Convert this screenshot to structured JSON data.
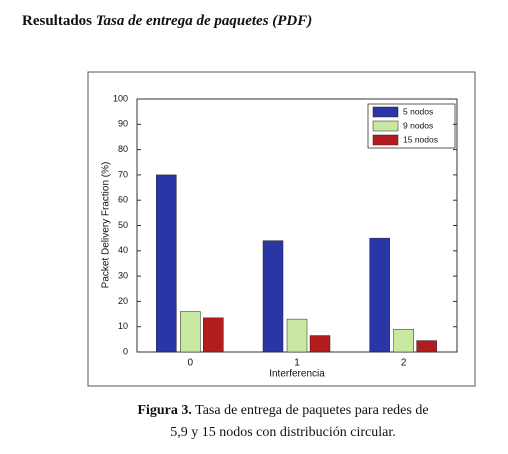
{
  "heading": {
    "label": "Resultados",
    "title": "Tasa de entrega de paquetes (PDF)"
  },
  "chart_data": {
    "type": "bar",
    "y_label": "Packet Delivery Fraction (%)",
    "x_label": "Interferencia",
    "categories": [
      "0",
      "1",
      "2"
    ],
    "series": [
      {
        "name": "5 nodos",
        "color": "#2b36a6",
        "values": [
          70,
          44,
          45
        ]
      },
      {
        "name": "9 nodos",
        "color": "#c9e8a2",
        "values": [
          16,
          13,
          9
        ]
      },
      {
        "name": "15 nodos",
        "color": "#b31c1c",
        "values": [
          13.5,
          6.5,
          4.5
        ]
      }
    ],
    "ylim": [
      0,
      100
    ],
    "yticks": [
      0,
      10,
      20,
      30,
      40,
      50,
      60,
      70,
      80,
      90,
      100
    ],
    "legend": "upper right"
  },
  "caption": {
    "label": "Figura 3.",
    "line1": "Tasa de entrega de paquetes para redes de",
    "line2": "5,9 y 15 nodos con distribución circular."
  }
}
